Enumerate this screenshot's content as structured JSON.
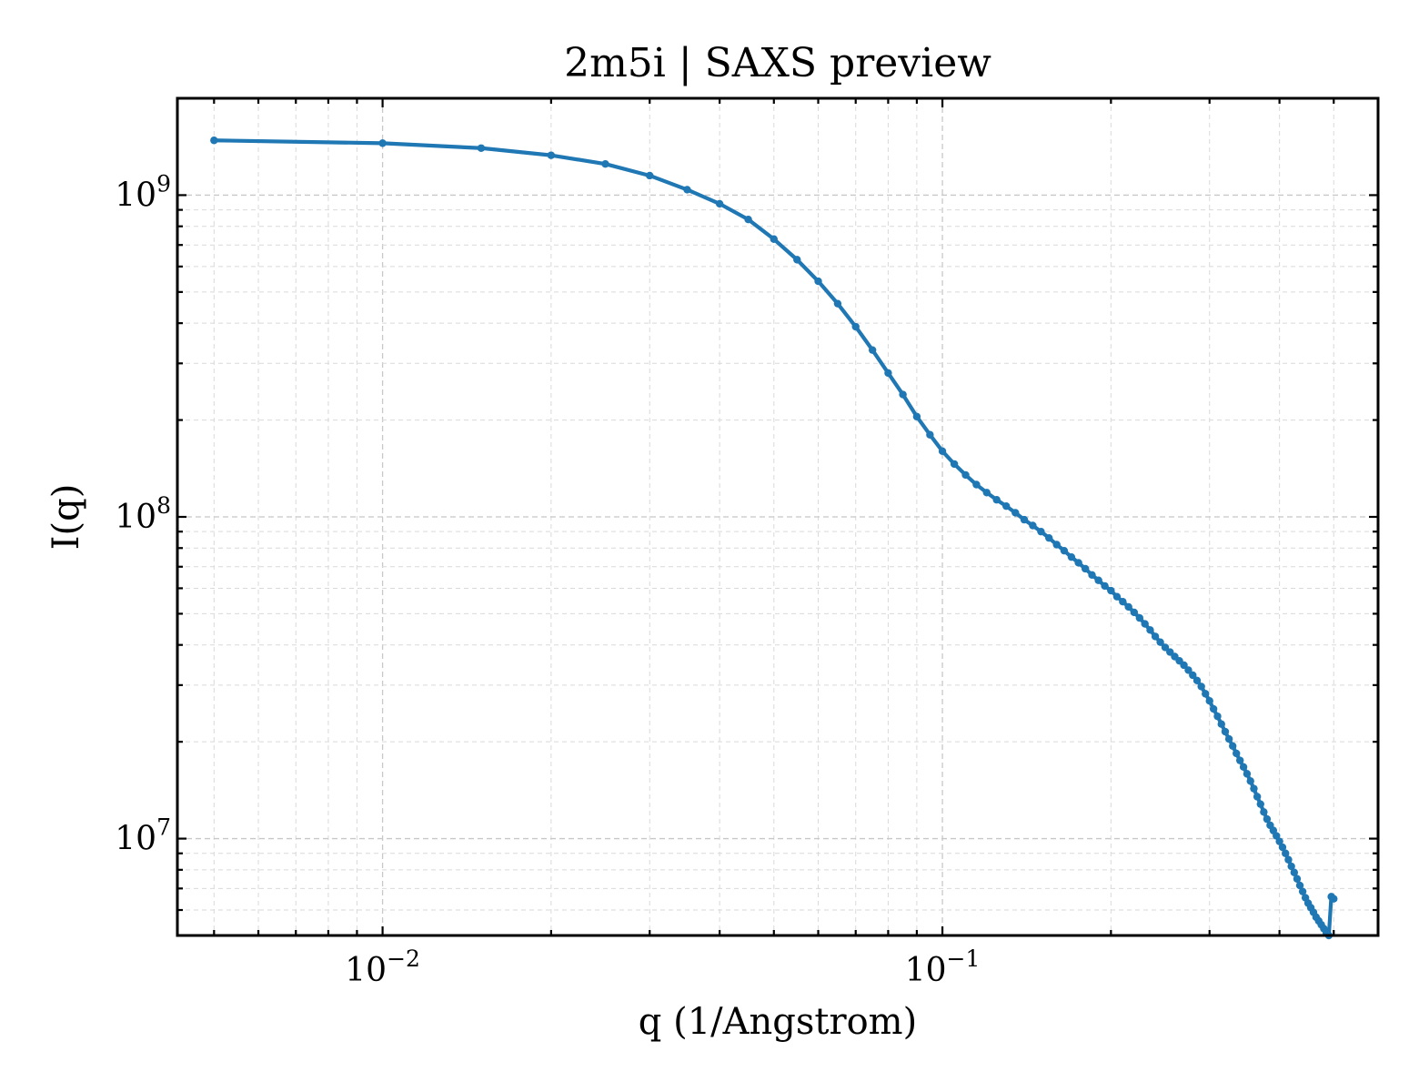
{
  "chart_data": {
    "type": "line",
    "title": "2m5i | SAXS preview",
    "xlabel": "q (1/Angstrom)",
    "ylabel": "I(q)",
    "x_scale": "log",
    "y_scale": "log",
    "xlim": [
      0.0043,
      0.6
    ],
    "ylim": [
      5000000,
      2000000000
    ],
    "grid": true,
    "x_ticks": [
      {
        "base": "10",
        "exp": "−2"
      },
      {
        "base": "10",
        "exp": "−1"
      }
    ],
    "y_ticks": [
      {
        "base": "10",
        "exp": "7"
      },
      {
        "base": "10",
        "exp": "8"
      },
      {
        "base": "10",
        "exp": "9"
      }
    ],
    "colors": {
      "series": "#1f77b4"
    },
    "series": [
      {
        "marker": "dot",
        "x": [
          0.005,
          0.01,
          0.015,
          0.02,
          0.025,
          0.03,
          0.035,
          0.04,
          0.045,
          0.05,
          0.055,
          0.06,
          0.065,
          0.07,
          0.075,
          0.08,
          0.085,
          0.09,
          0.095,
          0.1,
          0.105,
          0.11,
          0.115,
          0.12,
          0.125,
          0.13,
          0.135,
          0.14,
          0.145,
          0.15,
          0.155,
          0.16,
          0.165,
          0.17,
          0.175,
          0.18,
          0.185,
          0.19,
          0.195,
          0.2,
          0.205,
          0.21,
          0.215,
          0.22,
          0.225,
          0.23,
          0.235,
          0.24,
          0.245,
          0.25,
          0.255,
          0.26,
          0.265,
          0.27,
          0.275,
          0.28,
          0.285,
          0.29,
          0.295,
          0.3,
          0.305,
          0.31,
          0.315,
          0.32,
          0.325,
          0.33,
          0.335,
          0.34,
          0.345,
          0.35,
          0.355,
          0.36,
          0.365,
          0.37,
          0.375,
          0.38,
          0.385,
          0.39,
          0.395,
          0.4,
          0.405,
          0.41,
          0.415,
          0.42,
          0.425,
          0.43,
          0.435,
          0.44,
          0.445,
          0.45,
          0.455,
          0.46,
          0.465,
          0.47,
          0.475,
          0.48,
          0.485,
          0.49,
          0.495,
          0.5
        ],
        "y": [
          1480000000,
          1450000000,
          1400000000,
          1330000000,
          1250000000,
          1150000000,
          1040000000,
          940000000,
          840000000,
          730000000,
          630000000,
          540000000,
          460000000,
          390000000,
          330000000,
          280000000,
          240000000,
          205000000,
          180000000,
          160000000,
          146000000,
          135000000,
          126000000,
          119000000,
          113000000,
          108000000,
          103000000,
          98000000,
          94000000,
          90000000,
          86000000,
          82000000,
          78500000,
          75000000,
          72000000,
          69000000,
          66000000,
          63500000,
          61000000,
          59000000,
          56500000,
          54500000,
          52500000,
          50500000,
          48500000,
          46500000,
          44500000,
          42500000,
          40800000,
          39300000,
          38000000,
          36800000,
          35700000,
          34600000,
          33400000,
          32200000,
          31000000,
          29700000,
          28200000,
          26800000,
          25300000,
          24000000,
          22700000,
          21500000,
          20400000,
          19400000,
          18400000,
          17500000,
          16700000,
          15900000,
          15100000,
          14300000,
          13500000,
          12800000,
          12100000,
          11500000,
          11000000,
          10600000,
          10200000,
          9800000,
          9400000,
          9000000,
          8600000,
          8200000,
          7850000,
          7500000,
          7150000,
          6850000,
          6550000,
          6300000,
          6100000,
          5900000,
          5700000,
          5550000,
          5400000,
          5250000,
          5100000,
          5000000,
          6600000,
          6500000
        ]
      }
    ]
  }
}
